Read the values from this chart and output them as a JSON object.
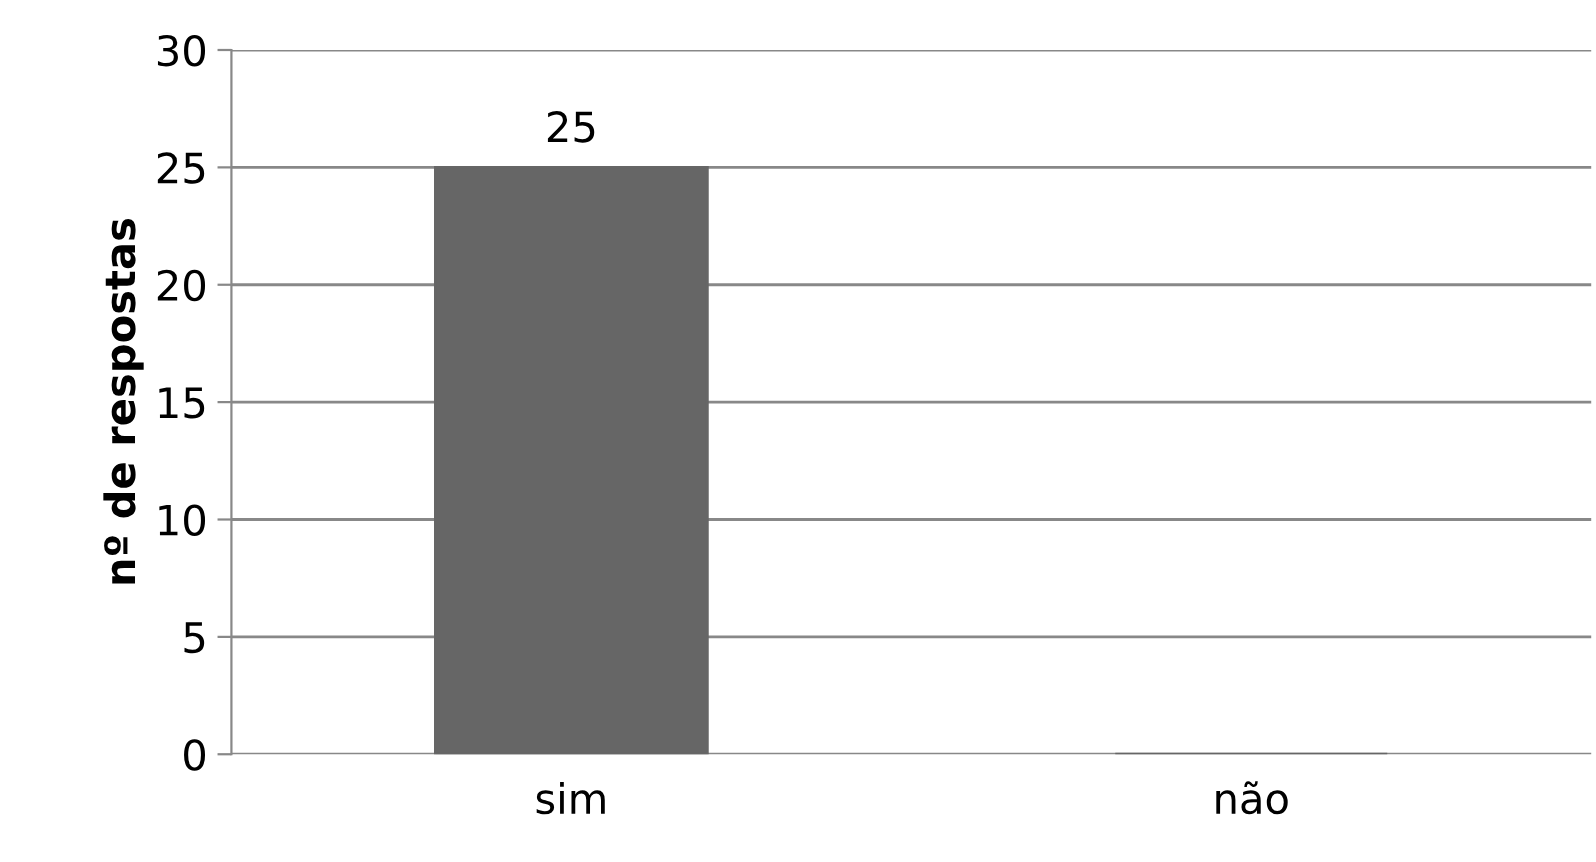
{
  "chart_data": {
    "type": "bar",
    "ylabel": "nº de respostas",
    "categories": [
      "sim",
      "não"
    ],
    "values": [
      25,
      0
    ],
    "value_labels": [
      "25",
      null
    ],
    "color": "#666666",
    "ylim": [
      0,
      30
    ],
    "yticks": [
      0,
      5,
      10,
      15,
      20,
      25,
      30
    ],
    "grid": "y"
  }
}
